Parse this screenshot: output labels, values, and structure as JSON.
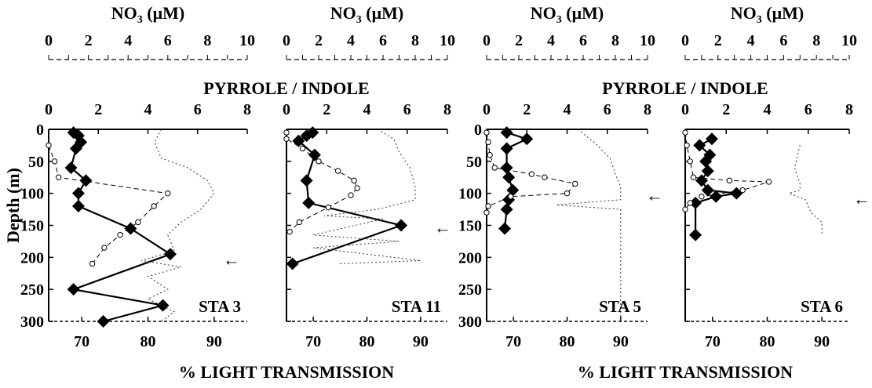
{
  "figure": {
    "y_axis_title": "Depth (m)",
    "top_axis_title": "NO",
    "top_axis_sub": "3",
    "top_axis_unit": " (μM)",
    "ratio_axis_title": "PYRROLE / INDOLE",
    "bottom_axis_title": "% LIGHT TRANSMISSION",
    "arrow_glyph": "←"
  },
  "chart_data": [
    {
      "type": "line",
      "panel_label": "STA 3",
      "ylabel": "Depth (m)",
      "y_ticks": [
        0,
        50,
        100,
        150,
        200,
        250,
        300
      ],
      "ylim": [
        0,
        300
      ],
      "y_inverted": true,
      "axes": {
        "no3": {
          "label": "NO3 (μM)",
          "ticks": [
            0,
            2,
            4,
            6,
            8,
            10
          ],
          "range": [
            0,
            10
          ]
        },
        "ratio": {
          "label": "PYRROLE / INDOLE",
          "ticks": [
            0,
            2,
            4,
            6,
            8
          ],
          "range": [
            0,
            8
          ]
        },
        "transmission": {
          "label": "% LIGHT TRANSMISSION",
          "ticks": [
            70,
            80,
            90
          ],
          "range": [
            65,
            95
          ]
        }
      },
      "arrow_depth": 200,
      "series": [
        {
          "axis": "ratio",
          "marker": "diamond",
          "points": [
            [
              1.0,
              5
            ],
            [
              1.2,
              10
            ],
            [
              1.3,
              20
            ],
            [
              1.1,
              30
            ],
            [
              0.9,
              60
            ],
            [
              1.5,
              80
            ],
            [
              1.2,
              100
            ],
            [
              1.2,
              120
            ],
            [
              3.3,
              155
            ],
            [
              4.9,
              195
            ],
            [
              1.0,
              250
            ],
            [
              4.6,
              275
            ],
            [
              2.2,
              300
            ]
          ]
        },
        {
          "axis": "no3",
          "marker": "circle",
          "points": [
            [
              0.0,
              25
            ],
            [
              0.3,
              50
            ],
            [
              0.5,
              75
            ],
            [
              6.0,
              100
            ],
            [
              5.3,
              120
            ],
            [
              4.5,
              145
            ],
            [
              3.6,
              165
            ],
            [
              2.8,
              185
            ],
            [
              2.2,
              210
            ]
          ]
        },
        {
          "axis": "transmission",
          "marker": "none",
          "points": [
            [
              82,
              0
            ],
            [
              81,
              20
            ],
            [
              82,
              45
            ],
            [
              86,
              60
            ],
            [
              89,
              80
            ],
            [
              90,
              100
            ],
            [
              88,
              125
            ],
            [
              85,
              145
            ],
            [
              83,
              165
            ],
            [
              84,
              190
            ],
            [
              79,
              205
            ],
            [
              85,
              215
            ],
            [
              80,
              230
            ],
            [
              83,
              250
            ],
            [
              80,
              265
            ],
            [
              84,
              285
            ],
            [
              82,
              300
            ]
          ]
        }
      ]
    },
    {
      "type": "line",
      "panel_label": "STA 11",
      "ylim": [
        0,
        300
      ],
      "y_inverted": true,
      "axes": {
        "no3": {
          "label": "NO3 (μM)",
          "ticks": [
            0,
            2,
            4,
            6,
            8,
            10
          ],
          "range": [
            0,
            10
          ]
        },
        "ratio": {
          "label": "PYRROLE / INDOLE",
          "ticks": [
            0,
            2,
            4,
            6,
            8
          ],
          "range": [
            0,
            8
          ]
        },
        "transmission": {
          "label": "% LIGHT TRANSMISSION",
          "ticks": [
            70,
            80,
            90
          ],
          "range": [
            65,
            95
          ]
        }
      },
      "arrow_depth": 150,
      "series": [
        {
          "axis": "ratio",
          "marker": "diamond",
          "points": [
            [
              1.3,
              5
            ],
            [
              1.0,
              10
            ],
            [
              0.6,
              18
            ],
            [
              1.4,
              40
            ],
            [
              1.0,
              80
            ],
            [
              1.1,
              115
            ],
            [
              5.7,
              150
            ],
            [
              0.3,
              210
            ]
          ]
        },
        {
          "axis": "no3",
          "marker": "circle",
          "points": [
            [
              0.0,
              5
            ],
            [
              0.0,
              15
            ],
            [
              1.0,
              30
            ],
            [
              2.0,
              50
            ],
            [
              3.2,
              65
            ],
            [
              4.2,
              80
            ],
            [
              4.4,
              92
            ],
            [
              4.0,
              103
            ],
            [
              2.6,
              122
            ],
            [
              0.8,
              145
            ],
            [
              0.2,
              160
            ]
          ]
        },
        {
          "axis": "transmission",
          "marker": "none",
          "points": [
            [
              82,
              0
            ],
            [
              85,
              15
            ],
            [
              86,
              35
            ],
            [
              88,
              60
            ],
            [
              89,
              90
            ],
            [
              89,
              110
            ],
            [
              82,
              125
            ],
            [
              72,
              135
            ],
            [
              83,
              140
            ],
            [
              70,
              165
            ],
            [
              86,
              175
            ],
            [
              70,
              185
            ],
            [
              90,
              205
            ],
            [
              75,
              210
            ]
          ]
        }
      ]
    },
    {
      "type": "line",
      "panel_label": "STA 5",
      "ylim": [
        0,
        300
      ],
      "y_inverted": true,
      "axes": {
        "no3": {
          "label": "NO3 (μM)",
          "ticks": [
            0,
            2,
            4,
            6,
            8,
            10
          ],
          "range": [
            0,
            10
          ]
        },
        "ratio": {
          "label": "PYRROLE / INDOLE",
          "ticks": [
            0,
            2,
            4,
            6,
            8
          ],
          "range": [
            0,
            8
          ]
        },
        "transmission": {
          "label": "% LIGHT TRANSMISSION",
          "ticks": [
            70,
            80,
            90
          ],
          "range": [
            65,
            95
          ]
        }
      },
      "arrow_depth": 100,
      "series": [
        {
          "axis": "ratio",
          "marker": "diamond",
          "points": [
            [
              1.0,
              5
            ],
            [
              2.0,
              15
            ],
            [
              1.0,
              30
            ],
            [
              1.0,
              60
            ],
            [
              1.1,
              75
            ],
            [
              1.3,
              95
            ],
            [
              1.1,
              110
            ],
            [
              1.0,
              125
            ],
            [
              0.9,
              155
            ]
          ]
        },
        {
          "axis": "no3",
          "marker": "circle",
          "points": [
            [
              0.0,
              5
            ],
            [
              0.1,
              20
            ],
            [
              0.2,
              40
            ],
            [
              0.5,
              60
            ],
            [
              2.8,
              70
            ],
            [
              3.6,
              75
            ],
            [
              5.5,
              85
            ],
            [
              5.0,
              100
            ],
            [
              1.5,
              105
            ],
            [
              0.1,
              120
            ],
            [
              0.0,
              130
            ]
          ]
        },
        {
          "axis": "transmission",
          "marker": "none",
          "points": [
            [
              82,
              0
            ],
            [
              85,
              20
            ],
            [
              88,
              45
            ],
            [
              89,
              70
            ],
            [
              90,
              90
            ],
            [
              90,
              110
            ],
            [
              78,
              118
            ],
            [
              90,
              125
            ],
            [
              90,
              300
            ]
          ]
        }
      ]
    },
    {
      "type": "line",
      "panel_label": "STA 6",
      "ylim": [
        0,
        300
      ],
      "y_inverted": true,
      "axes": {
        "no3": {
          "label": "NO3 (μM)",
          "ticks": [
            0,
            2,
            4,
            6,
            8,
            10
          ],
          "range": [
            0,
            10
          ]
        },
        "ratio": {
          "label": "PYRROLE / INDOLE",
          "ticks": [
            0,
            2,
            4,
            6,
            8
          ],
          "range": [
            0,
            8
          ]
        },
        "transmission": {
          "label": "% LIGHT TRANSMISSION",
          "ticks": [
            70,
            80,
            90
          ],
          "range": [
            65,
            95
          ]
        }
      },
      "arrow_depth": 105,
      "series": [
        {
          "axis": "ratio",
          "marker": "diamond",
          "points": [
            [
              1.3,
              15
            ],
            [
              0.7,
              25
            ],
            [
              1.2,
              40
            ],
            [
              1.0,
              50
            ],
            [
              1.1,
              65
            ],
            [
              0.8,
              80
            ],
            [
              1.1,
              95
            ],
            [
              2.5,
              100
            ],
            [
              1.5,
              105
            ],
            [
              0.5,
              115
            ],
            [
              0.5,
              165
            ]
          ]
        },
        {
          "axis": "no3",
          "marker": "circle",
          "points": [
            [
              0.0,
              5
            ],
            [
              0.1,
              25
            ],
            [
              0.3,
              50
            ],
            [
              0.5,
              75
            ],
            [
              2.7,
              80
            ],
            [
              5.1,
              82
            ],
            [
              3.5,
              95
            ],
            [
              1.0,
              105
            ],
            [
              0.3,
              115
            ],
            [
              0.0,
              125
            ]
          ]
        },
        {
          "axis": "transmission",
          "marker": "none",
          "points": [
            [
              86,
              25
            ],
            [
              85,
              60
            ],
            [
              86,
              85
            ],
            [
              86,
              95
            ],
            [
              84,
              100
            ],
            [
              87,
              110
            ],
            [
              88,
              130
            ],
            [
              90,
              145
            ],
            [
              90,
              165
            ]
          ]
        }
      ]
    }
  ]
}
